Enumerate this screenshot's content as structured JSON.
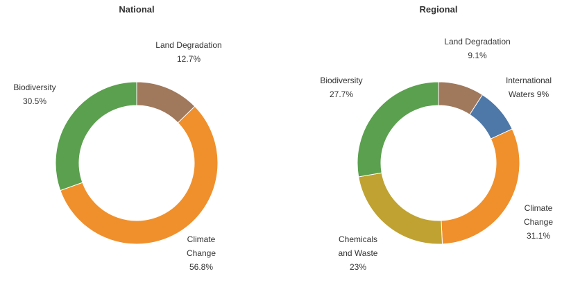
{
  "chart_data": [
    {
      "type": "donut",
      "title": "National",
      "categories": [
        "Land Degradation",
        "Climate Change",
        "Biodiversity"
      ],
      "values": [
        12.7,
        56.8,
        30.5
      ],
      "value_labels": [
        "12.7%",
        "56.8%",
        "30.5%"
      ],
      "colors": [
        "#a0785c",
        "#f0902c",
        "#5ba04e"
      ]
    },
    {
      "type": "donut",
      "title": "Regional",
      "categories": [
        "Land Degradation",
        "International Waters",
        "Climate Change",
        "Chemicals and Waste",
        "Biodiversity"
      ],
      "values": [
        9.1,
        9,
        31.1,
        23,
        27.7
      ],
      "value_labels": [
        "9.1%",
        "9%",
        "31.1%",
        "23%",
        "27.7%"
      ],
      "colors": [
        "#a0785c",
        "#4e78a8",
        "#f0902c",
        "#bfa232",
        "#5ba04e"
      ]
    }
  ]
}
